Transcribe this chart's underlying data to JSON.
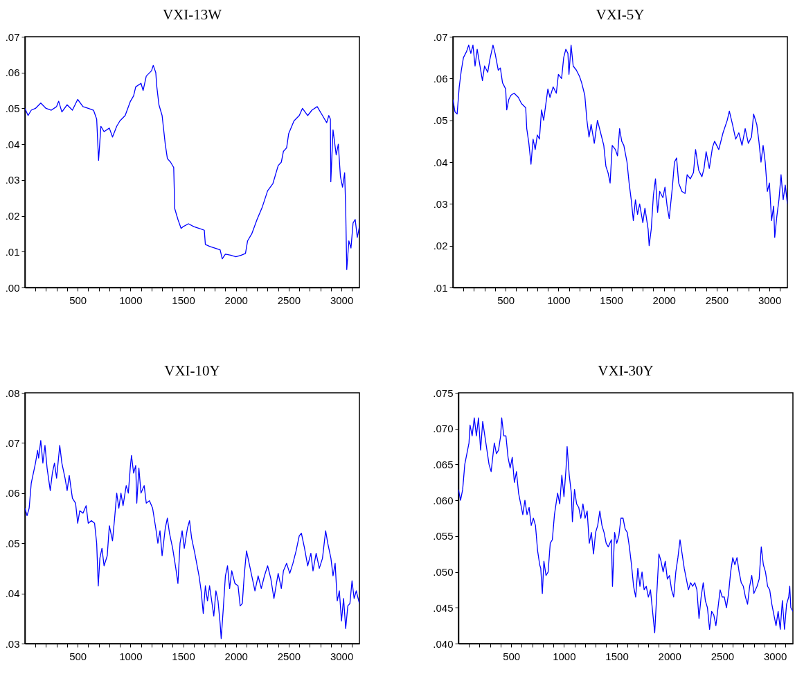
{
  "chart_data": [
    {
      "type": "line",
      "title": "VXI-13W",
      "xlim": [
        0,
        3170
      ],
      "xticks": [
        {
          "value": 100,
          "label": null
        },
        {
          "value": 200,
          "label": null
        },
        {
          "value": 300,
          "label": null
        },
        {
          "value": 400,
          "label": null
        },
        500,
        {
          "value": 600,
          "label": null
        },
        {
          "value": 700,
          "label": null
        },
        {
          "value": 800,
          "label": null
        },
        {
          "value": 900,
          "label": null
        },
        1000,
        {
          "value": 1100,
          "label": null
        },
        {
          "value": 1200,
          "label": null
        },
        {
          "value": 1300,
          "label": null
        },
        {
          "value": 1400,
          "label": null
        },
        1500,
        {
          "value": 1600,
          "label": null
        },
        {
          "value": 1700,
          "label": null
        },
        {
          "value": 1800,
          "label": null
        },
        {
          "value": 1900,
          "label": null
        },
        2000,
        {
          "value": 2100,
          "label": null
        },
        {
          "value": 2200,
          "label": null
        },
        {
          "value": 2300,
          "label": null
        },
        {
          "value": 2400,
          "label": null
        },
        2500,
        {
          "value": 2600,
          "label": null
        },
        {
          "value": 2700,
          "label": null
        },
        {
          "value": 2800,
          "label": null
        },
        {
          "value": 2900,
          "label": null
        },
        3000,
        {
          "value": 3100,
          "label": null
        }
      ],
      "ylim": [
        0,
        0.07
      ],
      "yticks": [
        {
          "value": 0,
          "label": ".00"
        },
        {
          "value": 0.01,
          "label": ".01"
        },
        {
          "value": 0.02,
          "label": ".02"
        },
        {
          "value": 0.03,
          "label": ".03"
        },
        {
          "value": 0.04,
          "label": ".04"
        },
        {
          "value": 0.05,
          "label": ".05"
        },
        {
          "value": 0.06,
          "label": ".06"
        },
        {
          "value": 0.07,
          "label": ".07"
        }
      ],
      "x": [
        0,
        30,
        60,
        100,
        150,
        200,
        250,
        300,
        320,
        350,
        400,
        450,
        500,
        550,
        600,
        650,
        680,
        698,
        720,
        750,
        800,
        830,
        870,
        900,
        950,
        1000,
        1030,
        1050,
        1100,
        1120,
        1150,
        1200,
        1216,
        1240,
        1250,
        1270,
        1300,
        1330,
        1350,
        1380,
        1410,
        1420,
        1450,
        1480,
        1500,
        1550,
        1600,
        1650,
        1700,
        1710,
        1750,
        1800,
        1850,
        1870,
        1900,
        1950,
        2000,
        2050,
        2090,
        2110,
        2150,
        2200,
        2250,
        2300,
        2350,
        2400,
        2430,
        2450,
        2480,
        2500,
        2550,
        2600,
        2630,
        2680,
        2720,
        2770,
        2820,
        2860,
        2880,
        2895,
        2899,
        2920,
        2950,
        2970,
        2990,
        3010,
        3030,
        3040,
        3050,
        3070,
        3090,
        3110,
        3130,
        3150,
        3170
      ],
      "series": [
        {
          "color": "#0000ff",
          "values": [
            0.05,
            0.048,
            0.0495,
            0.05,
            0.0515,
            0.05,
            0.0495,
            0.0505,
            0.052,
            0.049,
            0.051,
            0.0495,
            0.0525,
            0.0505,
            0.05,
            0.0495,
            0.047,
            0.0355,
            0.045,
            0.0435,
            0.0445,
            0.042,
            0.045,
            0.0465,
            0.048,
            0.052,
            0.0535,
            0.056,
            0.057,
            0.055,
            0.059,
            0.0605,
            0.062,
            0.06,
            0.056,
            0.051,
            0.048,
            0.04,
            0.036,
            0.035,
            0.0335,
            0.022,
            0.019,
            0.0165,
            0.017,
            0.0178,
            0.017,
            0.0165,
            0.016,
            0.012,
            0.0115,
            0.011,
            0.0105,
            0.008,
            0.0093,
            0.009,
            0.0086,
            0.009,
            0.0095,
            0.013,
            0.015,
            0.019,
            0.0225,
            0.027,
            0.029,
            0.034,
            0.035,
            0.038,
            0.039,
            0.043,
            0.0465,
            0.048,
            0.05,
            0.048,
            0.0495,
            0.0505,
            0.048,
            0.046,
            0.048,
            0.047,
            0.0295,
            0.044,
            0.037,
            0.04,
            0.031,
            0.028,
            0.032,
            0.022,
            0.005,
            0.013,
            0.011,
            0.018,
            0.019,
            0.014,
            0.017
          ]
        }
      ]
    },
    {
      "type": "line",
      "title": "VXI-5Y",
      "xlim": [
        0,
        3170
      ],
      "xticks": [
        {
          "value": 100,
          "label": null
        },
        {
          "value": 200,
          "label": null
        },
        {
          "value": 300,
          "label": null
        },
        {
          "value": 400,
          "label": null
        },
        500,
        {
          "value": 600,
          "label": null
        },
        {
          "value": 700,
          "label": null
        },
        {
          "value": 800,
          "label": null
        },
        {
          "value": 900,
          "label": null
        },
        1000,
        {
          "value": 1100,
          "label": null
        },
        {
          "value": 1200,
          "label": null
        },
        {
          "value": 1300,
          "label": null
        },
        {
          "value": 1400,
          "label": null
        },
        1500,
        {
          "value": 1600,
          "label": null
        },
        {
          "value": 1700,
          "label": null
        },
        {
          "value": 1800,
          "label": null
        },
        {
          "value": 1900,
          "label": null
        },
        2000,
        {
          "value": 2100,
          "label": null
        },
        {
          "value": 2200,
          "label": null
        },
        {
          "value": 2300,
          "label": null
        },
        {
          "value": 2400,
          "label": null
        },
        2500,
        {
          "value": 2600,
          "label": null
        },
        {
          "value": 2700,
          "label": null
        },
        {
          "value": 2800,
          "label": null
        },
        {
          "value": 2900,
          "label": null
        },
        3000,
        {
          "value": 3100,
          "label": null
        }
      ],
      "ylim": [
        0.01,
        0.07
      ],
      "yticks": [
        {
          "value": 0.01,
          "label": ".01"
        },
        {
          "value": 0.02,
          "label": ".02"
        },
        {
          "value": 0.03,
          "label": ".03"
        },
        {
          "value": 0.04,
          "label": ".04"
        },
        {
          "value": 0.05,
          "label": ".05"
        },
        {
          "value": 0.06,
          "label": ".06"
        },
        {
          "value": 0.07,
          "label": ".07"
        }
      ],
      "x": [
        0,
        20,
        40,
        60,
        80,
        100,
        130,
        150,
        170,
        190,
        210,
        230,
        250,
        280,
        300,
        330,
        350,
        380,
        400,
        430,
        450,
        470,
        500,
        510,
        530,
        550,
        580,
        620,
        650,
        690,
        700,
        720,
        740,
        760,
        780,
        800,
        820,
        840,
        860,
        900,
        920,
        950,
        980,
        1000,
        1030,
        1050,
        1070,
        1090,
        1100,
        1120,
        1140,
        1170,
        1200,
        1220,
        1250,
        1270,
        1290,
        1310,
        1340,
        1370,
        1400,
        1430,
        1450,
        1470,
        1490,
        1510,
        1540,
        1560,
        1580,
        1600,
        1620,
        1650,
        1670,
        1690,
        1710,
        1730,
        1750,
        1770,
        1800,
        1820,
        1850,
        1860,
        1880,
        1900,
        1920,
        1940,
        1960,
        1990,
        2010,
        2030,
        2050,
        2080,
        2100,
        2120,
        2140,
        2170,
        2200,
        2220,
        2250,
        2280,
        2300,
        2330,
        2360,
        2380,
        2400,
        2430,
        2460,
        2480,
        2520,
        2560,
        2600,
        2620,
        2650,
        2680,
        2710,
        2740,
        2770,
        2800,
        2830,
        2850,
        2880,
        2900,
        2920,
        2940,
        2960,
        2980,
        3000,
        3020,
        3040,
        3050,
        3070,
        3090,
        3110,
        3130,
        3150,
        3170
      ],
      "series": [
        {
          "color": "#0000ff",
          "values": [
            0.055,
            0.052,
            0.0515,
            0.058,
            0.062,
            0.065,
            0.0665,
            0.068,
            0.066,
            0.068,
            0.063,
            0.067,
            0.064,
            0.0595,
            0.063,
            0.0615,
            0.0645,
            0.068,
            0.066,
            0.062,
            0.0625,
            0.059,
            0.0575,
            0.0525,
            0.055,
            0.056,
            0.0565,
            0.0555,
            0.054,
            0.053,
            0.048,
            0.0445,
            0.0395,
            0.0455,
            0.043,
            0.0465,
            0.0455,
            0.0525,
            0.05,
            0.0575,
            0.0555,
            0.058,
            0.0565,
            0.061,
            0.06,
            0.065,
            0.067,
            0.066,
            0.061,
            0.068,
            0.063,
            0.062,
            0.0605,
            0.059,
            0.056,
            0.05,
            0.046,
            0.049,
            0.0445,
            0.05,
            0.047,
            0.044,
            0.039,
            0.0375,
            0.035,
            0.044,
            0.043,
            0.0415,
            0.048,
            0.045,
            0.044,
            0.04,
            0.035,
            0.031,
            0.026,
            0.031,
            0.0275,
            0.03,
            0.0255,
            0.029,
            0.024,
            0.02,
            0.024,
            0.032,
            0.036,
            0.028,
            0.033,
            0.0315,
            0.034,
            0.0295,
            0.0265,
            0.034,
            0.04,
            0.041,
            0.035,
            0.033,
            0.0325,
            0.037,
            0.036,
            0.0375,
            0.043,
            0.038,
            0.0365,
            0.0385,
            0.0425,
            0.0385,
            0.0435,
            0.045,
            0.043,
            0.047,
            0.05,
            0.0522,
            0.049,
            0.0455,
            0.047,
            0.044,
            0.048,
            0.0445,
            0.046,
            0.0515,
            0.049,
            0.045,
            0.04,
            0.044,
            0.04,
            0.033,
            0.035,
            0.026,
            0.0295,
            0.022,
            0.027,
            0.031,
            0.037,
            0.031,
            0.0345,
            0.03
          ]
        }
      ]
    },
    {
      "type": "line",
      "title": "VXI-10Y",
      "xlim": [
        0,
        3170
      ],
      "xticks": [
        {
          "value": 100,
          "label": null
        },
        {
          "value": 200,
          "label": null
        },
        {
          "value": 300,
          "label": null
        },
        {
          "value": 400,
          "label": null
        },
        500,
        {
          "value": 600,
          "label": null
        },
        {
          "value": 700,
          "label": null
        },
        {
          "value": 800,
          "label": null
        },
        {
          "value": 900,
          "label": null
        },
        1000,
        {
          "value": 1100,
          "label": null
        },
        {
          "value": 1200,
          "label": null
        },
        {
          "value": 1300,
          "label": null
        },
        {
          "value": 1400,
          "label": null
        },
        1500,
        {
          "value": 1600,
          "label": null
        },
        {
          "value": 1700,
          "label": null
        },
        {
          "value": 1800,
          "label": null
        },
        {
          "value": 1900,
          "label": null
        },
        2000,
        {
          "value": 2100,
          "label": null
        },
        {
          "value": 2200,
          "label": null
        },
        {
          "value": 2300,
          "label": null
        },
        {
          "value": 2400,
          "label": null
        },
        2500,
        {
          "value": 2600,
          "label": null
        },
        {
          "value": 2700,
          "label": null
        },
        {
          "value": 2800,
          "label": null
        },
        {
          "value": 2900,
          "label": null
        },
        3000,
        {
          "value": 3100,
          "label": null
        }
      ],
      "ylim": [
        0.03,
        0.08
      ],
      "yticks": [
        {
          "value": 0.03,
          "label": ".03"
        },
        {
          "value": 0.04,
          "label": ".04"
        },
        {
          "value": 0.05,
          "label": ".05"
        },
        {
          "value": 0.06,
          "label": ".06"
        },
        {
          "value": 0.07,
          "label": ".07"
        },
        {
          "value": 0.08,
          "label": ".08"
        }
      ],
      "x": [
        0,
        20,
        40,
        60,
        80,
        100,
        120,
        130,
        150,
        170,
        190,
        210,
        240,
        260,
        280,
        300,
        330,
        350,
        380,
        400,
        420,
        450,
        480,
        500,
        520,
        550,
        580,
        600,
        630,
        660,
        680,
        695,
        710,
        730,
        750,
        780,
        800,
        830,
        850,
        870,
        890,
        910,
        930,
        960,
        980,
        1000,
        1010,
        1030,
        1050,
        1060,
        1080,
        1100,
        1130,
        1150,
        1180,
        1210,
        1240,
        1260,
        1280,
        1300,
        1330,
        1350,
        1370,
        1400,
        1430,
        1450,
        1470,
        1490,
        1510,
        1540,
        1560,
        1580,
        1610,
        1650,
        1670,
        1690,
        1710,
        1730,
        1750,
        1770,
        1790,
        1810,
        1830,
        1850,
        1860,
        1880,
        1900,
        1920,
        1940,
        1960,
        1990,
        2020,
        2040,
        2060,
        2080,
        2100,
        2120,
        2150,
        2180,
        2210,
        2240,
        2270,
        2300,
        2330,
        2360,
        2380,
        2400,
        2430,
        2450,
        2480,
        2510,
        2540,
        2570,
        2600,
        2620,
        2650,
        2680,
        2710,
        2730,
        2760,
        2790,
        2820,
        2850,
        2870,
        2900,
        2920,
        2940,
        2960,
        2980,
        3000,
        3020,
        3040,
        3060,
        3080,
        3100,
        3120,
        3140,
        3170
      ],
      "series": [
        {
          "color": "#0000ff",
          "values": [
            0.057,
            0.0555,
            0.057,
            0.062,
            0.064,
            0.066,
            0.0685,
            0.067,
            0.0705,
            0.066,
            0.0695,
            0.065,
            0.0605,
            0.064,
            0.066,
            0.063,
            0.0695,
            0.066,
            0.063,
            0.0605,
            0.0635,
            0.059,
            0.058,
            0.054,
            0.0565,
            0.056,
            0.0575,
            0.054,
            0.0545,
            0.054,
            0.05,
            0.0415,
            0.047,
            0.049,
            0.0455,
            0.0475,
            0.0535,
            0.0505,
            0.055,
            0.06,
            0.057,
            0.06,
            0.0575,
            0.0615,
            0.06,
            0.0655,
            0.0675,
            0.064,
            0.0655,
            0.058,
            0.065,
            0.06,
            0.0615,
            0.058,
            0.0585,
            0.057,
            0.053,
            0.05,
            0.0525,
            0.0475,
            0.053,
            0.055,
            0.052,
            0.049,
            0.045,
            0.042,
            0.05,
            0.0525,
            0.049,
            0.053,
            0.0545,
            0.051,
            0.048,
            0.0435,
            0.0405,
            0.036,
            0.0415,
            0.0385,
            0.0415,
            0.0385,
            0.0355,
            0.0405,
            0.0385,
            0.034,
            0.031,
            0.037,
            0.0435,
            0.0455,
            0.041,
            0.0445,
            0.042,
            0.0415,
            0.0375,
            0.038,
            0.044,
            0.0485,
            0.0465,
            0.0435,
            0.0405,
            0.0435,
            0.041,
            0.0435,
            0.0455,
            0.043,
            0.039,
            0.0415,
            0.044,
            0.041,
            0.0445,
            0.046,
            0.044,
            0.046,
            0.0485,
            0.0515,
            0.052,
            0.049,
            0.0455,
            0.048,
            0.0445,
            0.048,
            0.045,
            0.047,
            0.0525,
            0.05,
            0.047,
            0.0435,
            0.046,
            0.0385,
            0.0405,
            0.0345,
            0.039,
            0.033,
            0.0375,
            0.038,
            0.0425,
            0.039,
            0.0405,
            0.038
          ]
        }
      ]
    },
    {
      "type": "line",
      "title": "VXI-30Y",
      "xlim": [
        0,
        3170
      ],
      "xticks": [
        {
          "value": 100,
          "label": null
        },
        {
          "value": 200,
          "label": null
        },
        {
          "value": 300,
          "label": null
        },
        {
          "value": 400,
          "label": null
        },
        500,
        {
          "value": 600,
          "label": null
        },
        {
          "value": 700,
          "label": null
        },
        {
          "value": 800,
          "label": null
        },
        {
          "value": 900,
          "label": null
        },
        1000,
        {
          "value": 1100,
          "label": null
        },
        {
          "value": 1200,
          "label": null
        },
        {
          "value": 1300,
          "label": null
        },
        {
          "value": 1400,
          "label": null
        },
        1500,
        {
          "value": 1600,
          "label": null
        },
        {
          "value": 1700,
          "label": null
        },
        {
          "value": 1800,
          "label": null
        },
        {
          "value": 1900,
          "label": null
        },
        2000,
        {
          "value": 2100,
          "label": null
        },
        {
          "value": 2200,
          "label": null
        },
        {
          "value": 2300,
          "label": null
        },
        {
          "value": 2400,
          "label": null
        },
        2500,
        {
          "value": 2600,
          "label": null
        },
        {
          "value": 2700,
          "label": null
        },
        {
          "value": 2800,
          "label": null
        },
        {
          "value": 2900,
          "label": null
        },
        3000,
        {
          "value": 3100,
          "label": null
        }
      ],
      "ylim": [
        0.04,
        0.075
      ],
      "yticks": [
        {
          "value": 0.04,
          "label": ".040"
        },
        {
          "value": 0.045,
          "label": ".045"
        },
        {
          "value": 0.05,
          "label": ".050"
        },
        {
          "value": 0.055,
          "label": ".055"
        },
        {
          "value": 0.06,
          "label": ".060"
        },
        {
          "value": 0.065,
          "label": ".065"
        },
        {
          "value": 0.07,
          "label": ".070"
        },
        {
          "value": 0.075,
          "label": ".075"
        }
      ],
      "x": [
        0,
        20,
        40,
        60,
        80,
        100,
        110,
        130,
        150,
        170,
        190,
        210,
        230,
        260,
        290,
        310,
        340,
        360,
        380,
        400,
        410,
        430,
        450,
        470,
        490,
        510,
        530,
        550,
        570,
        590,
        610,
        630,
        650,
        670,
        690,
        710,
        730,
        750,
        770,
        780,
        795,
        810,
        830,
        850,
        870,
        890,
        910,
        940,
        960,
        980,
        1000,
        1020,
        1030,
        1050,
        1070,
        1080,
        1100,
        1120,
        1140,
        1160,
        1180,
        1200,
        1220,
        1240,
        1260,
        1280,
        1300,
        1320,
        1340,
        1360,
        1380,
        1400,
        1420,
        1450,
        1460,
        1480,
        1500,
        1520,
        1540,
        1560,
        1580,
        1600,
        1620,
        1640,
        1660,
        1680,
        1700,
        1720,
        1740,
        1760,
        1780,
        1800,
        1820,
        1840,
        1850,
        1860,
        1880,
        1900,
        1920,
        1940,
        1960,
        1980,
        2000,
        2020,
        2040,
        2060,
        2080,
        2100,
        2120,
        2140,
        2160,
        2180,
        2200,
        2220,
        2240,
        2260,
        2280,
        2300,
        2320,
        2340,
        2360,
        2380,
        2400,
        2420,
        2440,
        2460,
        2480,
        2500,
        2520,
        2540,
        2560,
        2580,
        2600,
        2620,
        2640,
        2660,
        2680,
        2700,
        2720,
        2740,
        2760,
        2780,
        2800,
        2830,
        2850,
        2870,
        2890,
        2910,
        2930,
        2950,
        2970,
        2990,
        3010,
        3030,
        3050,
        3070,
        3090,
        3110,
        3130,
        3140,
        3150,
        3170
      ],
      "series": [
        {
          "color": "#0000ff",
          "values": [
            0.0615,
            0.06,
            0.0615,
            0.065,
            0.0665,
            0.068,
            0.0705,
            0.069,
            0.0715,
            0.069,
            0.0715,
            0.067,
            0.071,
            0.068,
            0.065,
            0.064,
            0.068,
            0.0665,
            0.067,
            0.069,
            0.0715,
            0.069,
            0.069,
            0.066,
            0.0645,
            0.066,
            0.0625,
            0.064,
            0.061,
            0.0595,
            0.058,
            0.06,
            0.058,
            0.059,
            0.0565,
            0.0575,
            0.0565,
            0.053,
            0.051,
            0.0505,
            0.047,
            0.0515,
            0.0495,
            0.05,
            0.054,
            0.0545,
            0.058,
            0.061,
            0.0595,
            0.0635,
            0.0605,
            0.0645,
            0.0675,
            0.0635,
            0.061,
            0.057,
            0.0615,
            0.0595,
            0.059,
            0.0575,
            0.0595,
            0.0575,
            0.0585,
            0.054,
            0.0555,
            0.0525,
            0.0555,
            0.0565,
            0.0585,
            0.0565,
            0.0555,
            0.054,
            0.0535,
            0.0545,
            0.048,
            0.0555,
            0.054,
            0.055,
            0.0575,
            0.0575,
            0.056,
            0.0555,
            0.0535,
            0.051,
            0.048,
            0.0465,
            0.0505,
            0.048,
            0.05,
            0.0475,
            0.048,
            0.0465,
            0.0475,
            0.0445,
            0.043,
            0.0415,
            0.047,
            0.0525,
            0.0515,
            0.05,
            0.0515,
            0.049,
            0.0495,
            0.0475,
            0.0465,
            0.05,
            0.052,
            0.0545,
            0.0525,
            0.0505,
            0.049,
            0.0475,
            0.0485,
            0.048,
            0.0485,
            0.0475,
            0.0435,
            0.0465,
            0.0485,
            0.046,
            0.045,
            0.042,
            0.0445,
            0.044,
            0.0425,
            0.045,
            0.0475,
            0.0465,
            0.0465,
            0.045,
            0.047,
            0.05,
            0.052,
            0.051,
            0.052,
            0.05,
            0.0485,
            0.048,
            0.0465,
            0.0455,
            0.048,
            0.0495,
            0.047,
            0.048,
            0.049,
            0.0535,
            0.051,
            0.05,
            0.048,
            0.0475,
            0.0455,
            0.044,
            0.0425,
            0.0445,
            0.042,
            0.046,
            0.042,
            0.0455,
            0.0465,
            0.048,
            0.045,
            0.0445
          ]
        }
      ]
    }
  ]
}
